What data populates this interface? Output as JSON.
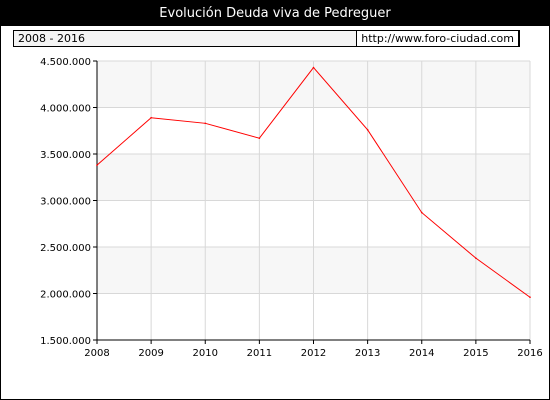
{
  "header": {
    "title": "Evolución Deuda viva de Pedreguer",
    "period": "2008 - 2016",
    "site": "http://www.foro-ciudad.com"
  },
  "chart_data": {
    "type": "line",
    "title": "Evolución Deuda viva de Pedreguer",
    "xlabel": "",
    "ylabel": "",
    "x": [
      2008,
      2009,
      2010,
      2011,
      2012,
      2013,
      2014,
      2015,
      2016
    ],
    "x_tick_labels": [
      "2008",
      "2009",
      "2010",
      "2011",
      "2012",
      "2013",
      "2014",
      "2015",
      "2016"
    ],
    "y_ticks": [
      1500000,
      2000000,
      2500000,
      3000000,
      3500000,
      4000000,
      4500000
    ],
    "y_tick_labels": [
      "1.500.000",
      "2.000.000",
      "2.500.000",
      "3.000.000",
      "3.500.000",
      "4.000.000",
      "4.500.000"
    ],
    "ylim": [
      1500000,
      4500000
    ],
    "series": [
      {
        "values": [
          3380000,
          3890000,
          3830000,
          3670000,
          4430000,
          3760000,
          2870000,
          2380000,
          1960000
        ],
        "color": "#ff0000"
      }
    ],
    "grid": true,
    "band_colors": [
      "#f7f7f7",
      "#ffffff"
    ]
  }
}
